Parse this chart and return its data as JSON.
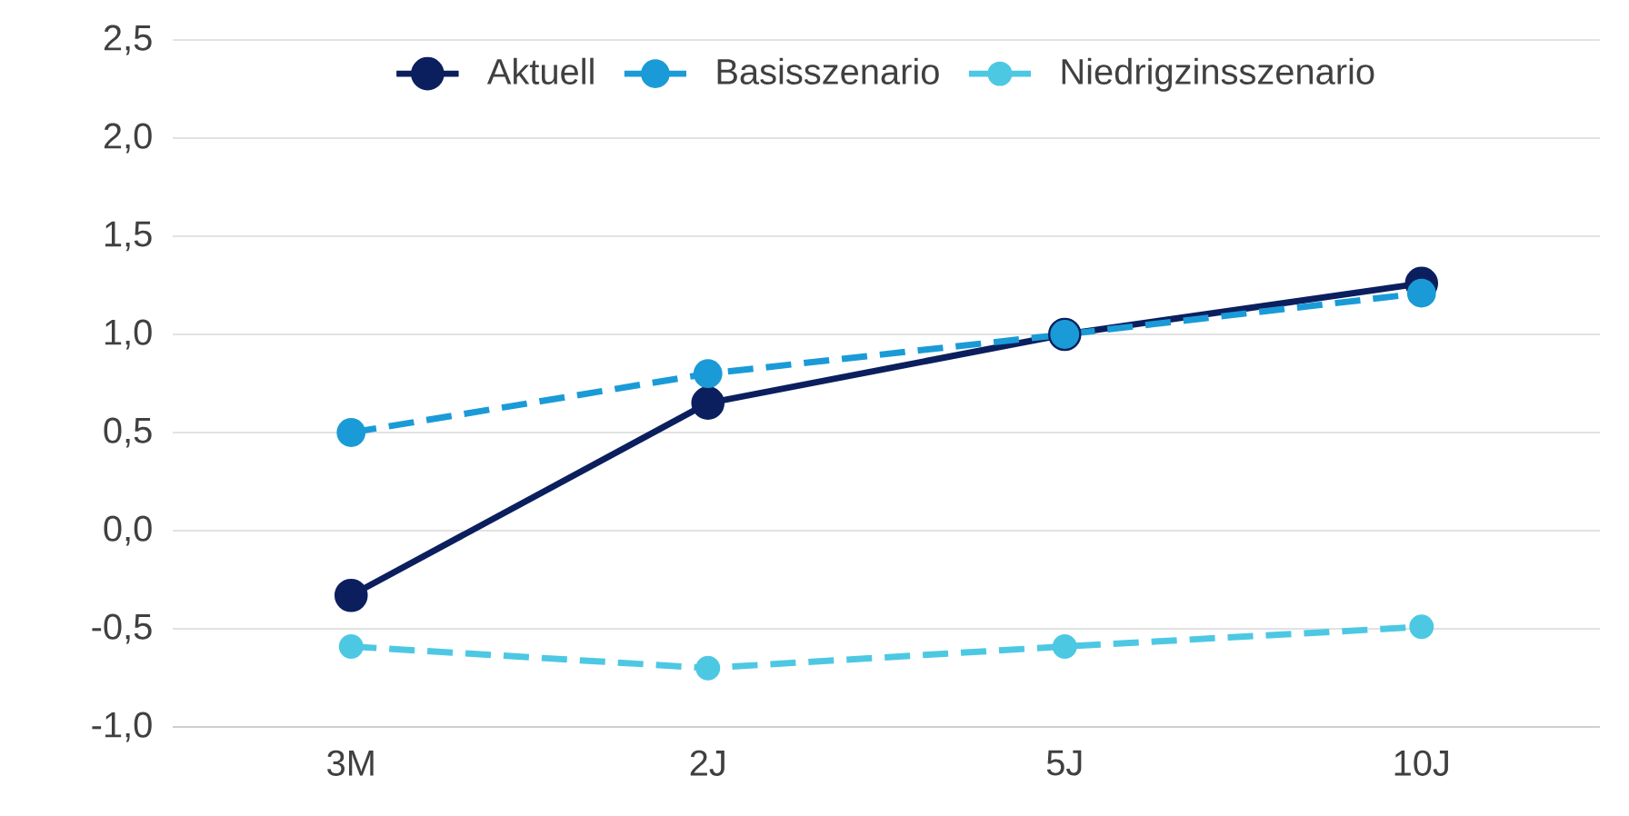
{
  "chart_data": {
    "type": "line",
    "categories": [
      "3M",
      "2J",
      "5J",
      "10J"
    ],
    "series": [
      {
        "name": "Aktuell",
        "color": "#0b1f5e",
        "line_style": "solid",
        "values": [
          -0.33,
          0.65,
          1.0,
          1.26
        ]
      },
      {
        "name": "Basisszenario",
        "color": "#1a9bd7",
        "line_style": "dashed",
        "values": [
          0.5,
          0.8,
          1.0,
          1.21
        ]
      },
      {
        "name": "Niedrigzinsszenario",
        "color": "#4dc8e3",
        "line_style": "dashed",
        "values": [
          -0.59,
          -0.7,
          -0.59,
          -0.49
        ]
      }
    ],
    "ylim": [
      -1,
      2.5
    ],
    "yticks": [
      {
        "value": -1,
        "label": "-1,0"
      },
      {
        "value": -0.5,
        "label": "-0,5"
      },
      {
        "value": 0,
        "label": "0,0"
      },
      {
        "value": 0.5,
        "label": "0,5"
      },
      {
        "value": 1,
        "label": "1,0"
      },
      {
        "value": 1.5,
        "label": "1,5"
      },
      {
        "value": 2,
        "label": "2,0"
      },
      {
        "value": 2.5,
        "label": "2,5"
      }
    ],
    "grid": "y",
    "legend": "top",
    "marker": "circle"
  }
}
